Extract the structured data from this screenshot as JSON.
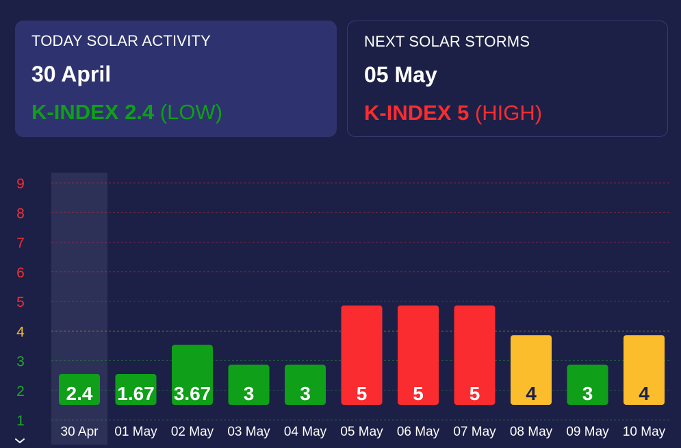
{
  "today_card": {
    "label": "TODAY SOLAR ACTIVITY",
    "date": "30 April",
    "k_label": "K-INDEX 2.4",
    "k_level": "(LOW)",
    "color": "#0f9f19"
  },
  "next_card": {
    "label": "NEXT SOLAR STORMS",
    "date": "05 May",
    "k_label": "K-INDEX 5",
    "k_level": "(HIGH)",
    "color": "#fb2c30"
  },
  "chart_data": {
    "type": "bar",
    "title": "",
    "xlabel": "",
    "ylabel": "",
    "ylim": [
      1,
      9
    ],
    "yticks": [
      "1",
      "2",
      "3",
      "4",
      "5",
      "6",
      "7",
      "8",
      "9"
    ],
    "categories": [
      "30 Apr",
      "01 May",
      "02 May",
      "03 May",
      "04 May",
      "05 May",
      "06 May",
      "07 May",
      "08 May",
      "09 May",
      "10 May"
    ],
    "values": [
      2.4,
      1.67,
      3.67,
      3,
      3,
      5,
      5,
      5,
      4,
      3,
      4
    ],
    "value_labels": [
      "2.4",
      "1.67",
      "3.67",
      "3",
      "3",
      "5",
      "5",
      "5",
      "4",
      "3",
      "4"
    ],
    "highlighted_category": "30 Apr",
    "grid": true,
    "colors": {
      "low": "#0f9f19",
      "moderate": "#fbbd2c",
      "high": "#fb2c30",
      "tick_low": "#1fa82a",
      "tick_moderate": "#fbbd2c",
      "tick_high": "#fb2c30",
      "highlight": "#2d3158"
    }
  }
}
